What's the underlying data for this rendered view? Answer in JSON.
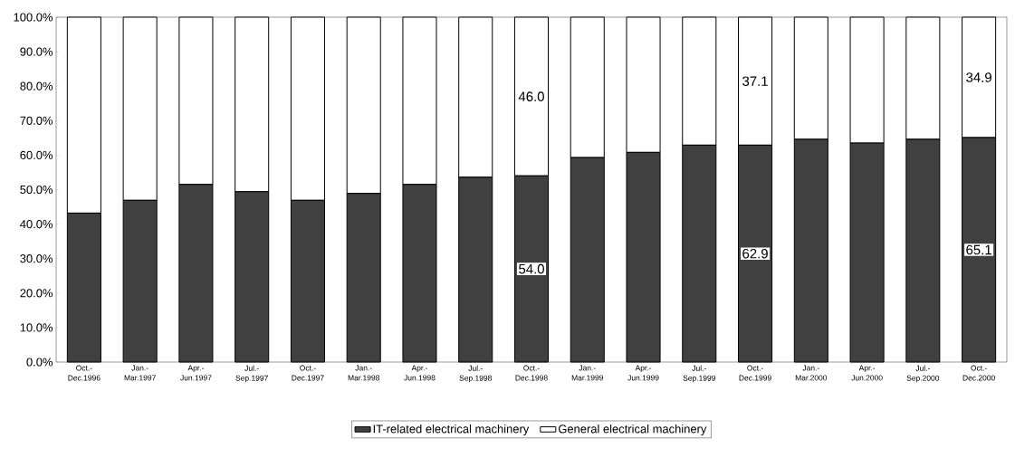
{
  "chart_data": {
    "type": "bar",
    "stacked": true,
    "categories": [
      "Oct.- Dec.1996",
      "Jan.- Mar.1997",
      "Apr.- Jun.1997",
      "Jul.- Sep.1997",
      "Oct.- Dec.1997",
      "Jan.- Mar.1998",
      "Apr.- Jun.1998",
      "Jul.- Sep.1998",
      "Oct.- Dec.1998",
      "Jan.- Mar.1999",
      "Apr.- Jun.1999",
      "Jul.- Sep.1999",
      "Oct.- Dec.1999",
      "Jan.- Mar.2000",
      "Apr.- Jun.2000",
      "Jul.- Sep.2000",
      "Oct.- Dec.2000"
    ],
    "series": [
      {
        "name": "IT-related electrical machinery",
        "color": "#404040",
        "values": [
          43.2,
          46.9,
          51.5,
          49.4,
          46.9,
          48.9,
          51.5,
          53.6,
          54.0,
          59.3,
          60.8,
          62.9,
          62.9,
          64.6,
          63.5,
          64.6,
          65.1
        ],
        "value_labels": [
          null,
          null,
          null,
          null,
          null,
          null,
          null,
          null,
          "54.0",
          null,
          null,
          null,
          "62.9",
          null,
          null,
          null,
          "65.1"
        ]
      },
      {
        "name": "General electrical machinery",
        "color": "#ffffff",
        "values": [
          56.8,
          53.1,
          48.5,
          50.6,
          53.1,
          51.1,
          48.5,
          46.4,
          46.0,
          40.7,
          39.2,
          37.1,
          37.1,
          35.4,
          36.5,
          35.4,
          34.9
        ],
        "value_labels": [
          null,
          null,
          null,
          null,
          null,
          null,
          null,
          null,
          "46.0",
          null,
          null,
          null,
          "37.1",
          null,
          null,
          null,
          "34.9"
        ]
      }
    ],
    "ylim": [
      0,
      100
    ],
    "yticks": [
      {
        "value": 0,
        "label": "0.0%"
      },
      {
        "value": 10,
        "label": "10.0%"
      },
      {
        "value": 20,
        "label": "20.0%"
      },
      {
        "value": 30,
        "label": "30.0%"
      },
      {
        "value": 40,
        "label": "40.0%"
      },
      {
        "value": 50,
        "label": "50.0%"
      },
      {
        "value": 60,
        "label": "60.0%"
      },
      {
        "value": 70,
        "label": "70.0%"
      },
      {
        "value": 80,
        "label": "80.0%"
      },
      {
        "value": 90,
        "label": "90.0%"
      },
      {
        "value": 100,
        "label": "100.0%"
      }
    ],
    "grid": false,
    "legend": "bottom"
  }
}
